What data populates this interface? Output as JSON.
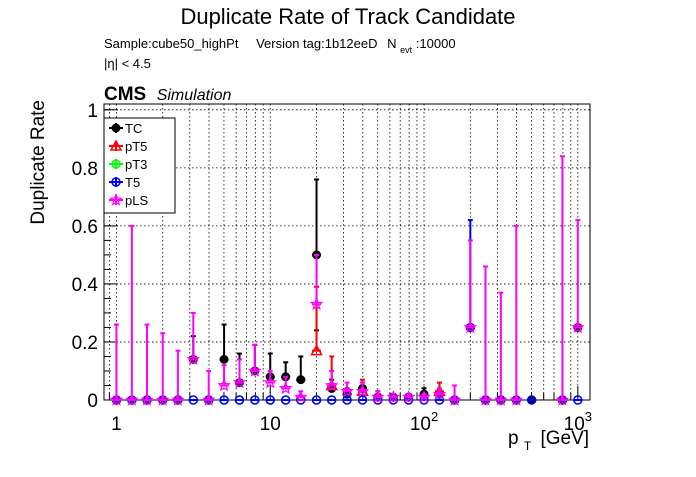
{
  "title": "Duplicate Rate of Track Candidate",
  "subtitle": {
    "sample": "Sample:cube50_highPt",
    "version": "Version tag:1b12eeD",
    "nevt_label": "N",
    "nevt_sub": "evt",
    "nevt_value": ":10000"
  },
  "eta_cut": "|η| < 4.5",
  "cms_label": "CMS",
  "cms_sub": "Simulation",
  "chart_data": {
    "type": "scatter",
    "xlabel": "p",
    "xlabel_sub": "T",
    "xlabel_unit": "[GeV]",
    "ylabel": "Duplicate Rate",
    "xscale": "log",
    "xlim": [
      0.83,
      1200
    ],
    "ylim": [
      0,
      1.02
    ],
    "grid": true,
    "legend_position": "top-left",
    "x_ticks": [
      {
        "value": 1,
        "label": "1"
      },
      {
        "value": 10,
        "label": "10"
      },
      {
        "value": 100,
        "label": "10",
        "sup": "2"
      },
      {
        "value": 1000,
        "label": "10",
        "sup": "3"
      }
    ],
    "y_ticks": [
      "0",
      "0.2",
      "0.4",
      "0.6",
      "0.8",
      "1"
    ],
    "y_tick_values": [
      0,
      0.2,
      0.4,
      0.6,
      0.8,
      1.0
    ],
    "series": [
      {
        "name": "TC",
        "color": "#000000",
        "marker": "circle-filled",
        "points": [
          {
            "x": 1.0,
            "y": 0
          },
          {
            "x": 1.26,
            "y": 0
          },
          {
            "x": 1.58,
            "y": 0
          },
          {
            "x": 2.0,
            "y": 0
          },
          {
            "x": 2.51,
            "y": 0
          },
          {
            "x": 3.16,
            "y": 0.14,
            "hi": 0.22
          },
          {
            "x": 3.98,
            "y": 0
          },
          {
            "x": 5.01,
            "y": 0.14,
            "hi": 0.26
          },
          {
            "x": 6.31,
            "y": 0.06,
            "hi": 0.16
          },
          {
            "x": 7.94,
            "y": 0.1,
            "hi": 0.19
          },
          {
            "x": 10.0,
            "y": 0.08,
            "hi": 0.16
          },
          {
            "x": 12.6,
            "y": 0.08,
            "hi": 0.13
          },
          {
            "x": 15.8,
            "y": 0.07,
            "hi": 0.15
          },
          {
            "x": 20.0,
            "y": 0.5,
            "lo": 0.24,
            "hi": 0.76
          },
          {
            "x": 25.1,
            "y": 0.04,
            "hi": 0.07
          },
          {
            "x": 31.6,
            "y": 0.02,
            "hi": 0.04
          },
          {
            "x": 39.8,
            "y": 0.04,
            "hi": 0.06
          },
          {
            "x": 50.1,
            "y": 0.01,
            "hi": 0.03
          },
          {
            "x": 63.1,
            "y": 0.01,
            "hi": 0.02
          },
          {
            "x": 79.4,
            "y": 0.01,
            "hi": 0.02
          },
          {
            "x": 100,
            "y": 0.02,
            "hi": 0.04
          },
          {
            "x": 126,
            "y": 0.02,
            "hi": 0.03
          },
          {
            "x": 158,
            "y": 0
          },
          {
            "x": 200,
            "y": 0.25
          },
          {
            "x": 251,
            "y": 0
          },
          {
            "x": 316,
            "y": 0
          },
          {
            "x": 398,
            "y": 0
          },
          {
            "x": 501,
            "y": 0
          },
          {
            "x": 794,
            "y": 0
          },
          {
            "x": 1000,
            "y": 0.25
          }
        ]
      },
      {
        "name": "pT5",
        "color": "#ff0000",
        "marker": "triangle-open",
        "points": [
          {
            "x": 20.0,
            "y": 0.17,
            "hi": 0.39
          },
          {
            "x": 25.1,
            "y": 0.05,
            "hi": 0.15
          },
          {
            "x": 39.8,
            "y": 0.03,
            "hi": 0.07
          },
          {
            "x": 126,
            "y": 0.03,
            "hi": 0.06
          }
        ]
      },
      {
        "name": "pT3",
        "color": "#00ff00",
        "marker": "circle-open",
        "points": [
          {
            "x": 3.98,
            "y": 0
          },
          {
            "x": 5.01,
            "y": 0
          },
          {
            "x": 6.31,
            "y": 0
          },
          {
            "x": 7.94,
            "y": 0
          },
          {
            "x": 10.0,
            "y": 0
          },
          {
            "x": 12.6,
            "y": 0
          },
          {
            "x": 15.8,
            "y": 0
          },
          {
            "x": 20.0,
            "y": 0
          },
          {
            "x": 25.1,
            "y": 0
          }
        ]
      },
      {
        "name": "T5",
        "color": "#0000ff",
        "marker": "circle-open",
        "points": [
          {
            "x": 1.0,
            "y": 0
          },
          {
            "x": 1.26,
            "y": 0
          },
          {
            "x": 1.58,
            "y": 0
          },
          {
            "x": 2.0,
            "y": 0
          },
          {
            "x": 2.51,
            "y": 0
          },
          {
            "x": 3.16,
            "y": 0
          },
          {
            "x": 3.98,
            "y": 0
          },
          {
            "x": 5.01,
            "y": 0
          },
          {
            "x": 6.31,
            "y": 0
          },
          {
            "x": 7.94,
            "y": 0
          },
          {
            "x": 10.0,
            "y": 0
          },
          {
            "x": 12.6,
            "y": 0
          },
          {
            "x": 15.8,
            "y": 0
          },
          {
            "x": 20.0,
            "y": 0
          },
          {
            "x": 25.1,
            "y": 0
          },
          {
            "x": 31.6,
            "y": 0
          },
          {
            "x": 39.8,
            "y": 0
          },
          {
            "x": 50.1,
            "y": 0
          },
          {
            "x": 63.1,
            "y": 0
          },
          {
            "x": 79.4,
            "y": 0
          },
          {
            "x": 100,
            "y": 0
          },
          {
            "x": 126,
            "y": 0
          },
          {
            "x": 158,
            "y": 0
          },
          {
            "x": 200,
            "y": 0.25,
            "hi": 0.62
          },
          {
            "x": 251,
            "y": 0
          },
          {
            "x": 316,
            "y": 0
          },
          {
            "x": 398,
            "y": 0
          },
          {
            "x": 501,
            "y": 0
          },
          {
            "x": 794,
            "y": 0
          },
          {
            "x": 1000,
            "y": 0
          }
        ]
      },
      {
        "name": "pLS",
        "color": "#ff00ff",
        "marker": "star-open",
        "points": [
          {
            "x": 1.0,
            "y": 0,
            "hi": 0.26
          },
          {
            "x": 1.26,
            "y": 0,
            "hi": 0.6
          },
          {
            "x": 1.58,
            "y": 0,
            "hi": 0.26
          },
          {
            "x": 2.0,
            "y": 0,
            "hi": 0.23
          },
          {
            "x": 2.51,
            "y": 0,
            "hi": 0.17
          },
          {
            "x": 3.16,
            "y": 0.14,
            "hi": 0.3
          },
          {
            "x": 3.98,
            "y": 0,
            "hi": 0.1
          },
          {
            "x": 5.01,
            "y": 0.05,
            "hi": 0.12
          },
          {
            "x": 6.31,
            "y": 0.06,
            "hi": 0.14
          },
          {
            "x": 7.94,
            "y": 0.1,
            "hi": 0.19
          },
          {
            "x": 10.0,
            "y": 0.06,
            "hi": 0.1
          },
          {
            "x": 12.6,
            "y": 0.04,
            "hi": 0.08
          },
          {
            "x": 15.8,
            "y": 0.01,
            "hi": 0.03
          },
          {
            "x": 20.0,
            "y": 0.33,
            "hi": 0.5
          },
          {
            "x": 25.1,
            "y": 0.05,
            "hi": 0.1
          },
          {
            "x": 31.6,
            "y": 0.03,
            "hi": 0.06
          },
          {
            "x": 39.8,
            "y": 0.03,
            "hi": 0.06
          },
          {
            "x": 50.1,
            "y": 0.01,
            "hi": 0.03
          },
          {
            "x": 63.1,
            "y": 0.01,
            "hi": 0.02
          },
          {
            "x": 79.4,
            "y": 0.01,
            "hi": 0.02
          },
          {
            "x": 100,
            "y": 0.01,
            "hi": 0.02
          },
          {
            "x": 126,
            "y": 0.02,
            "hi": 0.04
          },
          {
            "x": 158,
            "y": 0,
            "hi": 0.05
          },
          {
            "x": 200,
            "y": 0.25,
            "hi": 0.55
          },
          {
            "x": 251,
            "y": 0,
            "hi": 0.46
          },
          {
            "x": 316,
            "y": 0,
            "hi": 0.37
          },
          {
            "x": 398,
            "y": 0,
            "hi": 0.6
          },
          {
            "x": 794,
            "y": 0,
            "hi": 0.84
          },
          {
            "x": 1000,
            "y": 0.25,
            "hi": 0.62
          }
        ]
      }
    ]
  }
}
